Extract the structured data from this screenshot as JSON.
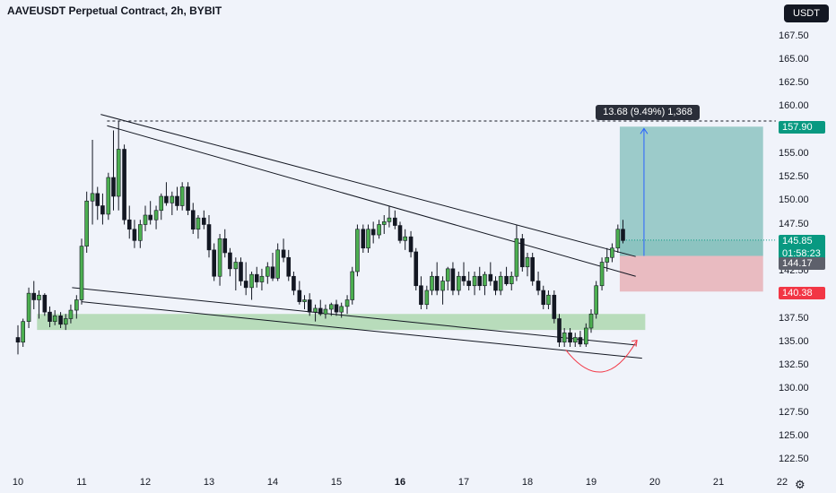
{
  "header": {
    "title": "AAVEUSDT Perpetual Contract, 2h, BYBIT",
    "currency_button": "USDT"
  },
  "colors": {
    "background": "#f0f3fa",
    "up": "#4caf50",
    "down": "#131722",
    "target_zone": "#6fb5b0",
    "stop_zone": "#e6a3a8",
    "support_zone": "#9fd19f",
    "tag_green": "#089981",
    "tag_gray": "#5d606b",
    "tag_red": "#f23645",
    "arrow": "#2962ff",
    "curve": "#f23645"
  },
  "chart_data": {
    "type": "candlestick",
    "symbol": "AAVEUSDT",
    "interval": "2h",
    "exchange": "BYBIT",
    "x_ticks": [
      {
        "label": "10",
        "day": 10,
        "bold": false
      },
      {
        "label": "11",
        "day": 11,
        "bold": false
      },
      {
        "label": "12",
        "day": 12,
        "bold": false
      },
      {
        "label": "13",
        "day": 13,
        "bold": false
      },
      {
        "label": "14",
        "day": 14,
        "bold": false
      },
      {
        "label": "15",
        "day": 15,
        "bold": false
      },
      {
        "label": "16",
        "day": 16,
        "bold": true
      },
      {
        "label": "17",
        "day": 17,
        "bold": false
      },
      {
        "label": "18",
        "day": 18,
        "bold": false
      },
      {
        "label": "19",
        "day": 19,
        "bold": false
      },
      {
        "label": "20",
        "day": 20,
        "bold": false
      },
      {
        "label": "21",
        "day": 21,
        "bold": false
      },
      {
        "label": "22",
        "day": 22,
        "bold": false
      }
    ],
    "y_ticks": [
      "167.50",
      "165.00",
      "162.50",
      "160.00",
      "155.00",
      "152.50",
      "150.00",
      "147.50",
      "142.50",
      "137.50",
      "135.00",
      "132.50",
      "130.00",
      "127.50",
      "125.00",
      "122.50"
    ],
    "ylim": [
      121.5,
      170
    ],
    "xlim": [
      9.85,
      22.05
    ],
    "price_labels": {
      "target": "157.90",
      "current": "145.85",
      "countdown": "01:58:23",
      "entry": "144.17",
      "stop": "140.38"
    },
    "measurement": "13.68 (9.49%) 1,368",
    "candles": [
      [
        10.0,
        135.5,
        136.8,
        133.7,
        135.0
      ],
      [
        10.08,
        135.0,
        137.5,
        134.5,
        137.2
      ],
      [
        10.17,
        137.2,
        140.8,
        136.5,
        140.2
      ],
      [
        10.25,
        140.2,
        141.5,
        138.5,
        139.5
      ],
      [
        10.33,
        139.5,
        140.5,
        137.5,
        140.0
      ],
      [
        10.42,
        140.0,
        140.2,
        137.8,
        138.2
      ],
      [
        10.5,
        138.2,
        138.8,
        136.6,
        137.2
      ],
      [
        10.58,
        137.2,
        138.4,
        136.8,
        137.8
      ],
      [
        10.67,
        137.8,
        138.2,
        136.5,
        136.9
      ],
      [
        10.75,
        136.9,
        138.0,
        136.3,
        137.5
      ],
      [
        10.83,
        137.5,
        139.0,
        137.0,
        138.4
      ],
      [
        10.92,
        138.4,
        140.0,
        137.5,
        139.5
      ],
      [
        11.0,
        139.5,
        146.0,
        139.0,
        145.2
      ],
      [
        11.08,
        145.2,
        151.0,
        144.5,
        150.0
      ],
      [
        11.17,
        150.0,
        156.5,
        147.5,
        150.8
      ],
      [
        11.25,
        150.8,
        151.5,
        148.0,
        149.5
      ],
      [
        11.33,
        149.5,
        150.8,
        147.5,
        148.6
      ],
      [
        11.42,
        148.6,
        153.0,
        148.0,
        152.5
      ],
      [
        11.5,
        152.5,
        157.5,
        149.0,
        150.5
      ],
      [
        11.58,
        150.5,
        158.5,
        149.0,
        155.5
      ],
      [
        11.67,
        155.5,
        156.0,
        147.5,
        148.0
      ],
      [
        11.75,
        148.0,
        149.5,
        146.0,
        147.0
      ],
      [
        11.83,
        147.0,
        148.0,
        145.0,
        145.8
      ],
      [
        11.92,
        145.8,
        148.0,
        145.0,
        147.5
      ],
      [
        12.0,
        147.5,
        149.5,
        146.8,
        148.5
      ],
      [
        12.08,
        148.5,
        150.0,
        147.5,
        148.0
      ],
      [
        12.17,
        148.0,
        149.5,
        147.0,
        149.0
      ],
      [
        12.25,
        149.0,
        150.8,
        148.0,
        150.5
      ],
      [
        12.33,
        150.5,
        152.0,
        149.5,
        149.8
      ],
      [
        12.42,
        149.8,
        151.0,
        148.5,
        150.5
      ],
      [
        12.5,
        150.5,
        151.5,
        149.0,
        149.5
      ],
      [
        12.58,
        149.5,
        152.0,
        149.0,
        151.5
      ],
      [
        12.67,
        151.5,
        152.0,
        148.5,
        149.0
      ],
      [
        12.75,
        149.0,
        149.8,
        146.5,
        147.0
      ],
      [
        12.83,
        147.0,
        148.5,
        146.0,
        148.2
      ],
      [
        12.92,
        148.2,
        149.0,
        147.0,
        147.5
      ],
      [
        13.0,
        147.5,
        148.5,
        144.0,
        144.8
      ],
      [
        13.08,
        144.8,
        145.5,
        141.5,
        142.0
      ],
      [
        13.17,
        142.0,
        146.5,
        141.0,
        146.0
      ],
      [
        13.25,
        146.0,
        147.0,
        144.0,
        144.5
      ],
      [
        13.33,
        144.5,
        145.0,
        142.0,
        142.8
      ],
      [
        13.42,
        142.8,
        144.0,
        140.5,
        143.5
      ],
      [
        13.5,
        143.5,
        144.0,
        141.0,
        141.5
      ],
      [
        13.58,
        141.5,
        143.5,
        140.0,
        140.8
      ],
      [
        13.67,
        140.8,
        142.5,
        139.5,
        142.2
      ],
      [
        13.75,
        142.2,
        143.0,
        140.8,
        141.4
      ],
      [
        13.83,
        141.4,
        142.8,
        140.5,
        142.0
      ],
      [
        13.92,
        142.0,
        143.5,
        141.2,
        143.0
      ],
      [
        14.0,
        143.0,
        144.5,
        141.5,
        141.8
      ],
      [
        14.08,
        141.8,
        145.5,
        141.5,
        144.8
      ],
      [
        14.17,
        144.8,
        146.0,
        143.5,
        144.0
      ],
      [
        14.25,
        144.0,
        144.8,
        141.5,
        142.0
      ],
      [
        14.33,
        142.0,
        142.5,
        140.0,
        140.5
      ],
      [
        14.42,
        140.5,
        141.5,
        139.0,
        139.3
      ],
      [
        14.5,
        139.3,
        140.0,
        138.5,
        139.5
      ],
      [
        14.58,
        139.5,
        140.2,
        137.8,
        138.2
      ],
      [
        14.67,
        138.2,
        139.0,
        137.2,
        138.6
      ],
      [
        14.75,
        138.6,
        139.5,
        137.8,
        138.0
      ],
      [
        14.83,
        138.0,
        139.0,
        137.5,
        138.5
      ],
      [
        14.92,
        138.5,
        139.2,
        137.8,
        139.0
      ],
      [
        15.0,
        139.0,
        139.5,
        137.8,
        138.2
      ],
      [
        15.08,
        138.2,
        139.2,
        137.6,
        138.8
      ],
      [
        15.17,
        138.8,
        140.0,
        138.0,
        139.5
      ],
      [
        15.25,
        139.5,
        143.0,
        139.0,
        142.5
      ],
      [
        15.33,
        142.5,
        147.5,
        142.0,
        147.0
      ],
      [
        15.42,
        147.0,
        147.5,
        144.5,
        145.0
      ],
      [
        15.5,
        145.0,
        147.5,
        144.5,
        147.0
      ],
      [
        15.58,
        147.0,
        147.8,
        145.5,
        146.4
      ],
      [
        15.67,
        146.4,
        148.0,
        146.0,
        147.5
      ],
      [
        15.75,
        147.5,
        148.5,
        146.5,
        147.8
      ],
      [
        15.83,
        147.8,
        149.5,
        147.2,
        148.2
      ],
      [
        15.92,
        148.2,
        149.0,
        147.0,
        147.4
      ],
      [
        16.0,
        147.4,
        147.8,
        145.5,
        145.8
      ],
      [
        16.08,
        145.8,
        147.0,
        144.8,
        146.2
      ],
      [
        16.17,
        146.2,
        146.8,
        144.0,
        144.6
      ],
      [
        16.25,
        144.6,
        145.0,
        140.5,
        141.0
      ],
      [
        16.33,
        141.0,
        142.0,
        138.5,
        139.0
      ],
      [
        16.42,
        139.0,
        141.0,
        138.5,
        140.5
      ],
      [
        16.5,
        140.5,
        142.5,
        140.0,
        142.0
      ],
      [
        16.58,
        142.0,
        143.5,
        140.0,
        140.5
      ],
      [
        16.67,
        140.5,
        142.0,
        139.0,
        141.5
      ],
      [
        16.75,
        141.5,
        143.0,
        140.5,
        142.8
      ],
      [
        16.83,
        142.8,
        143.5,
        140.0,
        140.5
      ],
      [
        16.92,
        140.5,
        142.5,
        140.0,
        142.0
      ],
      [
        17.0,
        142.0,
        143.5,
        141.0,
        141.5
      ],
      [
        17.08,
        141.5,
        142.5,
        140.5,
        141.0
      ],
      [
        17.17,
        141.0,
        142.5,
        140.0,
        142.0
      ],
      [
        17.25,
        142.0,
        143.0,
        140.5,
        141.0
      ],
      [
        17.33,
        141.0,
        142.5,
        140.0,
        142.2
      ],
      [
        17.42,
        142.2,
        143.5,
        141.0,
        141.5
      ],
      [
        17.5,
        141.5,
        142.0,
        140.0,
        140.5
      ],
      [
        17.58,
        140.5,
        142.5,
        140.0,
        142.0
      ],
      [
        17.67,
        142.0,
        143.0,
        141.0,
        141.2
      ],
      [
        17.75,
        141.2,
        142.5,
        140.5,
        142.0
      ],
      [
        17.83,
        142.0,
        147.5,
        141.5,
        146.0
      ],
      [
        17.92,
        146.0,
        146.5,
        142.5,
        143.0
      ],
      [
        18.0,
        143.0,
        144.5,
        142.0,
        144.0
      ],
      [
        18.08,
        144.0,
        144.5,
        141.0,
        141.5
      ],
      [
        18.17,
        141.5,
        142.5,
        140.0,
        140.5
      ],
      [
        18.25,
        140.5,
        141.0,
        138.5,
        139.0
      ],
      [
        18.33,
        139.0,
        140.5,
        138.5,
        140.0
      ],
      [
        18.42,
        140.0,
        140.5,
        137.0,
        137.5
      ],
      [
        18.5,
        137.5,
        138.0,
        134.5,
        135.0
      ],
      [
        18.58,
        135.0,
        136.5,
        134.5,
        136.0
      ],
      [
        18.67,
        136.0,
        136.5,
        134.5,
        135.0
      ],
      [
        18.75,
        135.0,
        136.0,
        134.5,
        135.5
      ],
      [
        18.83,
        135.5,
        136.2,
        134.5,
        134.8
      ],
      [
        18.92,
        134.8,
        137.0,
        134.5,
        136.5
      ],
      [
        19.0,
        136.5,
        138.5,
        136.0,
        138.0
      ],
      [
        19.08,
        138.0,
        141.5,
        137.5,
        141.0
      ],
      [
        19.17,
        141.0,
        144.0,
        140.5,
        143.5
      ],
      [
        19.25,
        143.5,
        145.0,
        142.5,
        144.0
      ],
      [
        19.33,
        144.0,
        145.5,
        143.5,
        145.0
      ],
      [
        19.42,
        145.0,
        147.5,
        144.5,
        147.0
      ],
      [
        19.5,
        147.0,
        148.0,
        145.5,
        145.8
      ]
    ]
  }
}
